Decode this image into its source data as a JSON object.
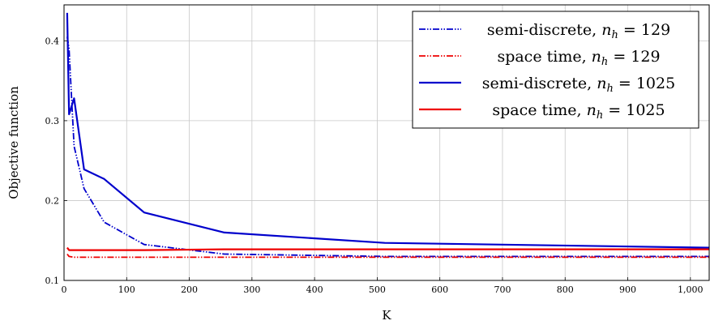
{
  "chart_data": {
    "type": "line",
    "xlabel": "K",
    "ylabel": "Objective function",
    "xlim": [
      0,
      1030
    ],
    "ylim": [
      0.1,
      0.445
    ],
    "x_ticks": [
      0,
      100,
      200,
      300,
      400,
      500,
      600,
      700,
      800,
      900,
      1000
    ],
    "x_tick_labels": [
      "0",
      "100",
      "200",
      "300",
      "400",
      "500",
      "600",
      "700",
      "800",
      "900",
      "1,000"
    ],
    "y_ticks": [
      0.1,
      0.2,
      0.3,
      0.4
    ],
    "y_tick_labels": [
      "0.1",
      "0.2",
      "0.3",
      "0.4"
    ],
    "grid": true,
    "legend_position": "top-right",
    "series": [
      {
        "name": "semi-discrete, n_h = 129",
        "legend_prefix": "semi-discrete, ",
        "legend_var": "n",
        "legend_sub": "h",
        "legend_suffix": " = 129",
        "color": "#0000cc",
        "style": "dash-dot-dot",
        "x": [
          5,
          8,
          10,
          16,
          32,
          64,
          128,
          256,
          512,
          1030
        ],
        "y": [
          0.405,
          0.39,
          0.36,
          0.268,
          0.215,
          0.173,
          0.145,
          0.133,
          0.13,
          0.13
        ]
      },
      {
        "name": "space time, n_h = 129",
        "legend_prefix": "space time, ",
        "legend_var": "n",
        "legend_sub": "h",
        "legend_suffix": " = 129",
        "color": "#ee0000",
        "style": "dash-dot-dot",
        "x": [
          5,
          8,
          16,
          32,
          64,
          128,
          256,
          512,
          1030
        ],
        "y": [
          0.133,
          0.13,
          0.129,
          0.129,
          0.129,
          0.129,
          0.129,
          0.129,
          0.129
        ]
      },
      {
        "name": "semi-discrete, n_h = 1025",
        "legend_prefix": "semi-discrete, ",
        "legend_var": "n",
        "legend_sub": "h",
        "legend_suffix": " = 1025",
        "color": "#0000cc",
        "style": "solid",
        "x": [
          5,
          8,
          16,
          32,
          64,
          128,
          256,
          512,
          1030
        ],
        "y": [
          0.435,
          0.308,
          0.328,
          0.239,
          0.227,
          0.185,
          0.16,
          0.147,
          0.141
        ]
      },
      {
        "name": "space time, n_h = 1025",
        "legend_prefix": "space time, ",
        "legend_var": "n",
        "legend_sub": "h",
        "legend_suffix": " = 1025",
        "color": "#ee0000",
        "style": "solid",
        "x": [
          5,
          8,
          16,
          32,
          64,
          128,
          256,
          512,
          1030
        ],
        "y": [
          0.141,
          0.138,
          0.138,
          0.138,
          0.138,
          0.138,
          0.139,
          0.139,
          0.139
        ]
      }
    ]
  }
}
